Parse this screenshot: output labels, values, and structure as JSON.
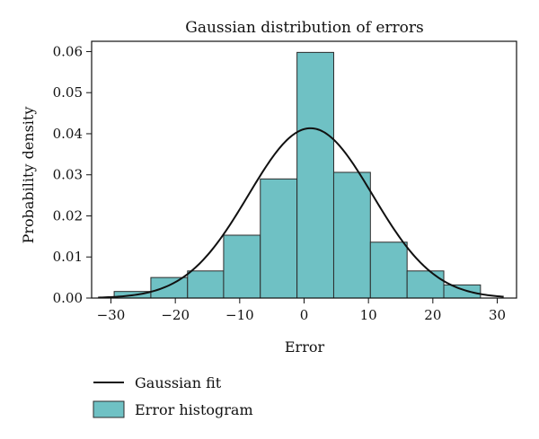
{
  "chart_data": {
    "type": "bar",
    "title": "Gaussian distribution of errors",
    "xlabel": "Error",
    "ylabel": "Probability density",
    "xlim": [
      -33,
      33
    ],
    "ylim": [
      0,
      0.0625
    ],
    "xticks": [
      -30,
      -20,
      -10,
      0,
      10,
      20,
      30
    ],
    "xtick_labels": [
      "−30",
      "−20",
      "−10",
      "0",
      "10",
      "20",
      "30"
    ],
    "yticks": [
      0.0,
      0.01,
      0.02,
      0.03,
      0.04,
      0.05,
      0.06
    ],
    "ytick_labels": [
      "0.00",
      "0.01",
      "0.02",
      "0.03",
      "0.04",
      "0.05",
      "0.06"
    ],
    "grid": false,
    "legend_position": "bottom-left",
    "histogram": {
      "name": "Error histogram",
      "color": "#6fc1c4",
      "bins": [
        {
          "start": -29.5,
          "end": -23.8,
          "density": 0.0016
        },
        {
          "start": -23.8,
          "end": -18.1,
          "density": 0.005
        },
        {
          "start": -18.1,
          "end": -12.5,
          "density": 0.0066
        },
        {
          "start": -12.5,
          "end": -6.8,
          "density": 0.0153
        },
        {
          "start": -6.8,
          "end": -1.1,
          "density": 0.029
        },
        {
          "start": -1.1,
          "end": 4.6,
          "density": 0.0598
        },
        {
          "start": 4.6,
          "end": 10.3,
          "density": 0.0306
        },
        {
          "start": 10.3,
          "end": 16.0,
          "density": 0.0136
        },
        {
          "start": 16.0,
          "end": 21.7,
          "density": 0.0066
        },
        {
          "start": 21.7,
          "end": 27.4,
          "density": 0.0032
        }
      ]
    },
    "fit": {
      "name": "Gaussian fit",
      "color": "#111111",
      "mean": 1.0,
      "std": 9.65,
      "x_range": [
        -32,
        31
      ]
    }
  }
}
